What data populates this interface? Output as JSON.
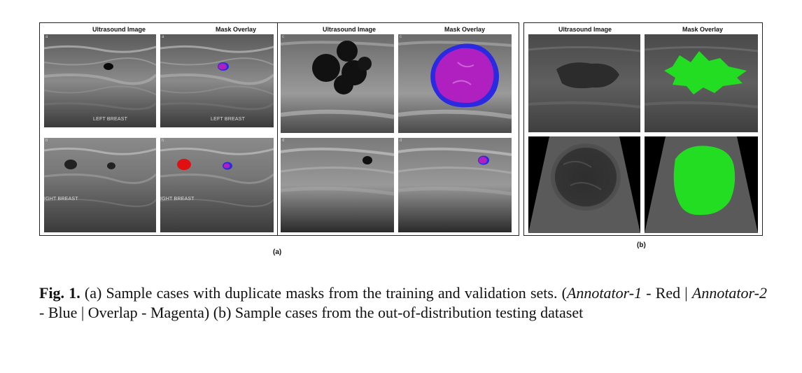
{
  "headers": {
    "ultrasound": "Ultrasound Image",
    "mask": "Mask Overlay"
  },
  "image_text": {
    "left_breast": "LEFT BREAST",
    "right_breast": "IGHT BREAST"
  },
  "panel_labels": {
    "a": "(a)",
    "b": "(b)"
  },
  "caption": {
    "fig_label": "Fig. 1.",
    "part1": " (a) Sample cases with duplicate masks from the training and validation sets. (",
    "annotator1": "Annotator-1",
    "part2": " - Red | ",
    "annotator2": "Annotator-2",
    "part3": " - Blue | Overlap - Magenta) (b) Sample cases from the out-of-distribution testing dataset"
  },
  "colors": {
    "annotator1": "#e01010",
    "annotator2": "#2a2ae0",
    "overlap": "#b020c0",
    "ood_mask": "#22dd22"
  }
}
